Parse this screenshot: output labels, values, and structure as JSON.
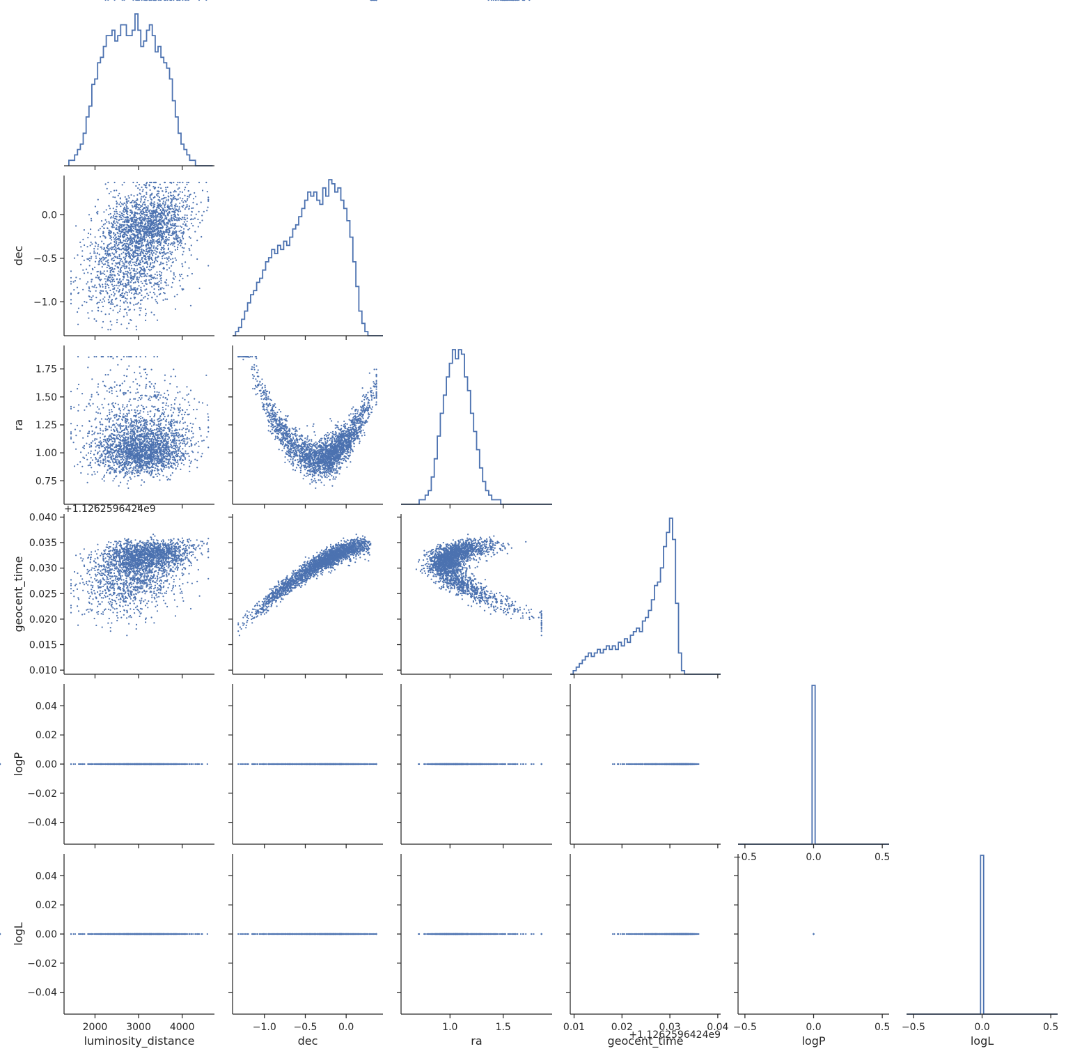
{
  "figure": {
    "type": "corner-pairplot",
    "series_color": "#4c72b0"
  },
  "chart_data": {
    "type": "scatter",
    "variables": [
      {
        "name": "luminosity_distance",
        "label": "luminosity_distance",
        "range": [
          1290,
          4740
        ],
        "ticks": [
          2000,
          3000,
          4000
        ],
        "tick_labels": [
          "2000",
          "3000",
          "4000"
        ]
      },
      {
        "name": "dec",
        "label": "dec",
        "range": [
          -1.39,
          0.45
        ],
        "ticks": [
          -1.0,
          -0.5,
          0.0
        ],
        "tick_labels": [
          "−1.0",
          "−0.5",
          "0.0"
        ]
      },
      {
        "name": "ra",
        "label": "ra",
        "range": [
          0.54,
          1.96
        ],
        "ticks": [
          0.75,
          1.0,
          1.25,
          1.5,
          1.75
        ],
        "tick_labels": [
          "0.75",
          "1.00",
          "1.25",
          "1.50",
          "1.75"
        ],
        "x_ticks": [
          1.0,
          1.5
        ],
        "x_tick_labels": [
          "1.0",
          "1.5"
        ]
      },
      {
        "name": "geocent_time",
        "label": "geocent_time",
        "range": [
          0.0092,
          0.0406
        ],
        "ticks": [
          0.01,
          0.015,
          0.02,
          0.025,
          0.03,
          0.035,
          0.04
        ],
        "tick_labels": [
          "0.010",
          "0.015",
          "0.020",
          "0.025",
          "0.030",
          "0.035",
          "0.040"
        ],
        "x_ticks": [
          0.01,
          0.02,
          0.03,
          0.04
        ],
        "x_tick_labels": [
          "0.01",
          "0.02",
          "0.03",
          "0.04"
        ],
        "offset_text": "+1.126259642​4e9"
      },
      {
        "name": "logP",
        "label": "logP",
        "range": [
          -0.055,
          0.055
        ],
        "ticks": [
          -0.04,
          -0.02,
          0.0,
          0.02,
          0.04
        ],
        "tick_labels": [
          "−0.04",
          "−0.02",
          "0.00",
          "0.02",
          "0.04"
        ],
        "x_ticks": [
          -0.5,
          0.0,
          0.5
        ],
        "x_tick_labels": [
          "−0.5",
          "0.0",
          "0.5"
        ],
        "x_range": [
          -0.55,
          0.55
        ]
      },
      {
        "name": "logL",
        "label": "logL",
        "range": [
          -0.055,
          0.055
        ],
        "ticks": [
          -0.04,
          -0.02,
          0.0,
          0.02,
          0.04
        ],
        "tick_labels": [
          "−0.04",
          "−0.02",
          "0.00",
          "0.02",
          "0.04"
        ],
        "x_ticks": [
          -0.5,
          0.0,
          0.5
        ],
        "x_tick_labels": [
          "−0.5",
          "0.0",
          "0.5"
        ],
        "x_range": [
          -0.55,
          0.55
        ]
      }
    ],
    "histograms": {
      "luminosity_distance": {
        "bin_start": 1400,
        "bin_width": 66,
        "counts": [
          1,
          1,
          2,
          3,
          4,
          6,
          9,
          11,
          15,
          16,
          19,
          20,
          22,
          24,
          24,
          25,
          23,
          24,
          26,
          26,
          24,
          24,
          25,
          28,
          25,
          22,
          23,
          25,
          26,
          24,
          21,
          22,
          20,
          19,
          18,
          16,
          12,
          9,
          6,
          4,
          3,
          2,
          1,
          1,
          0,
          0,
          0,
          0,
          0,
          0
        ]
      },
      "dec": {
        "bin_start": -1.39,
        "bin_width": 0.0368,
        "counts": [
          0,
          1,
          2,
          4,
          6,
          8,
          10,
          11,
          13,
          14,
          16,
          18,
          19,
          21,
          20,
          22,
          21,
          23,
          22,
          24,
          26,
          27,
          29,
          31,
          33,
          35,
          34,
          35,
          33,
          32,
          36,
          34,
          38,
          37,
          35,
          36,
          33,
          31,
          28,
          24,
          18,
          12,
          6,
          3,
          1,
          0,
          0,
          0,
          0,
          0
        ]
      },
      "ra": {
        "bin_start": 0.54,
        "bin_width": 0.0284,
        "counts": [
          0,
          0,
          0,
          0,
          0,
          0,
          1,
          1,
          2,
          3,
          6,
          10,
          15,
          20,
          24,
          28,
          31,
          34,
          32,
          34,
          33,
          28,
          25,
          20,
          16,
          12,
          8,
          5,
          3,
          2,
          1,
          1,
          1,
          0,
          0,
          0,
          0,
          0,
          0,
          0,
          0,
          0,
          0,
          0,
          0,
          0,
          0,
          0,
          0,
          0
        ]
      },
      "geocent_time": {
        "bin_start": 0.0092,
        "bin_width": 0.000628,
        "counts": [
          0,
          1,
          2,
          3,
          4,
          5,
          6,
          5,
          6,
          7,
          6,
          7,
          8,
          7,
          8,
          7,
          9,
          8,
          10,
          9,
          11,
          12,
          13,
          12,
          15,
          16,
          18,
          21,
          25,
          26,
          30,
          36,
          40,
          44,
          38,
          20,
          6,
          1,
          0,
          0,
          0,
          0,
          0,
          0,
          0,
          0,
          0,
          0,
          0,
          0
        ]
      },
      "logP": {
        "spike_at": 0.0,
        "bin_width": 0.022
      },
      "logL": {
        "spike_at": 0.0,
        "bin_width": 0.022
      }
    },
    "correlations": [
      {
        "x": "luminosity_distance",
        "y": "dec",
        "shape": "positive weak"
      },
      {
        "x": "dec",
        "y": "ra",
        "shape": "U-shaped, minimum near dec -0.35, ra 0.95"
      },
      {
        "x": "luminosity_distance",
        "y": "geocent_time",
        "shape": "positive weak"
      },
      {
        "x": "dec",
        "y": "geocent_time",
        "shape": "tight increasing curve"
      },
      {
        "x": "ra",
        "y": "geocent_time",
        "shape": "decreasing banana"
      },
      {
        "x": "*",
        "y": "logP",
        "shape": "constant at 0.00"
      },
      {
        "x": "*",
        "y": "logL",
        "shape": "constant at 0.00"
      }
    ],
    "grid": false,
    "legend": "none"
  }
}
